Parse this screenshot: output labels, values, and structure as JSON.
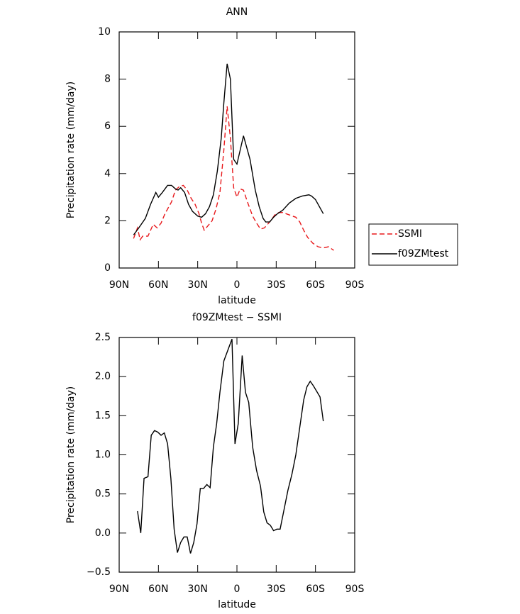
{
  "chart_data": [
    {
      "type": "line",
      "title": "ANN",
      "xlabel": "latitude",
      "ylabel": "Precipitation rate (mm/day)",
      "xlim": [
        90,
        -90
      ],
      "xticks": [
        {
          "value": 90,
          "label": "90N"
        },
        {
          "value": 60,
          "label": "60N"
        },
        {
          "value": 30,
          "label": "30N"
        },
        0,
        {
          "value": -30,
          "label": "30S"
        },
        {
          "value": -60,
          "label": "60S"
        },
        {
          "value": -90,
          "label": "90S"
        }
      ],
      "ylim": [
        0,
        10
      ],
      "yticks": [
        0,
        2,
        4,
        6,
        8,
        10
      ],
      "legend": "outside-right",
      "series": [
        {
          "name": "SSMI",
          "color": "#e8191c",
          "linestyle": "dashed",
          "x": [
            79,
            76,
            74,
            72,
            68,
            64,
            61,
            58,
            55,
            50,
            47,
            44,
            41,
            38,
            35,
            32,
            29,
            27,
            25,
            22,
            19,
            16,
            13,
            10,
            7.5,
            5,
            2.5,
            0,
            -2.5,
            -5,
            -8,
            -12,
            -15,
            -18,
            -21,
            -25,
            -29,
            -32,
            -35,
            -40,
            -45,
            -48,
            -51,
            -54,
            -58,
            -62,
            -66,
            -70,
            -74
          ],
          "values": [
            1.25,
            1.7,
            1.2,
            1.35,
            1.35,
            1.85,
            1.7,
            1.9,
            2.3,
            2.8,
            3.3,
            3.45,
            3.5,
            3.3,
            2.95,
            2.7,
            2.3,
            1.9,
            1.6,
            1.8,
            2.0,
            2.5,
            3.2,
            5.0,
            6.85,
            5.5,
            3.4,
            3.0,
            3.35,
            3.3,
            2.8,
            2.2,
            1.9,
            1.65,
            1.7,
            1.95,
            2.25,
            2.35,
            2.35,
            2.25,
            2.15,
            1.95,
            1.6,
            1.3,
            1.05,
            0.9,
            0.85,
            0.9,
            0.75
          ]
        },
        {
          "name": "f09ZMtest",
          "color": "#000000",
          "linestyle": "solid",
          "x": [
            79,
            75,
            70,
            66,
            62,
            60,
            57,
            53,
            50,
            47,
            45,
            43,
            40,
            37,
            34,
            30,
            27,
            24,
            21,
            18,
            15,
            12,
            10,
            7.5,
            5,
            2.5,
            0,
            -5,
            -10,
            -14,
            -17,
            -20,
            -22,
            -25,
            -28,
            -31,
            -35,
            -40,
            -45,
            -50,
            -55,
            -57,
            -60,
            -63,
            -66
          ],
          "values": [
            1.4,
            1.7,
            2.1,
            2.7,
            3.2,
            3.0,
            3.2,
            3.5,
            3.5,
            3.35,
            3.3,
            3.4,
            3.2,
            2.7,
            2.4,
            2.2,
            2.15,
            2.3,
            2.6,
            3.1,
            4.1,
            5.5,
            7.0,
            8.65,
            8.0,
            4.6,
            4.4,
            5.6,
            4.6,
            3.3,
            2.6,
            2.1,
            1.95,
            1.95,
            2.15,
            2.3,
            2.45,
            2.75,
            2.95,
            3.05,
            3.1,
            3.05,
            2.9,
            2.6,
            2.3
          ]
        }
      ]
    },
    {
      "type": "line",
      "title": "f09ZMtest − SSMI",
      "xlabel": "latitude",
      "ylabel": "Precipitation rate (mm/day)",
      "xlim": [
        90,
        -90
      ],
      "xticks": [
        {
          "value": 90,
          "label": "90N"
        },
        {
          "value": 60,
          "label": "60N"
        },
        {
          "value": 30,
          "label": "30N"
        },
        0,
        {
          "value": -30,
          "label": "30S"
        },
        {
          "value": -60,
          "label": "60S"
        },
        {
          "value": -90,
          "label": "90S"
        }
      ],
      "ylim": [
        -0.5,
        2.5
      ],
      "yticks": [
        {
          "value": -0.5,
          "label": "−0.5"
        },
        {
          "value": 0,
          "label": "0.0"
        },
        {
          "value": 0.5,
          "label": "0.5"
        },
        {
          "value": 1,
          "label": "1.0"
        },
        {
          "value": 1.5,
          "label": "1.5"
        },
        {
          "value": 2,
          "label": "2.0"
        },
        {
          "value": 2.5,
          "label": "2.5"
        }
      ],
      "series": [
        {
          "color": "#000000",
          "linestyle": "solid",
          "x": [
            76,
            73.5,
            71,
            68,
            65.5,
            63,
            60.5,
            58,
            55.5,
            53,
            50.5,
            48,
            45.5,
            43,
            40.5,
            38,
            35.5,
            33,
            30.5,
            28,
            25.5,
            23,
            20.5,
            18,
            15.5,
            13,
            10,
            3.8,
            1.5,
            -1,
            -4,
            -6.5,
            -9,
            -12,
            -15,
            -18,
            -20.5,
            -23,
            -25.5,
            -28,
            -30.5,
            -33,
            -36,
            -39,
            -42,
            -45,
            -48,
            -51,
            -53.5,
            -56,
            -58.5,
            -61,
            -63.5,
            -66
          ],
          "values": [
            0.28,
            0.0,
            0.7,
            0.72,
            1.25,
            1.31,
            1.29,
            1.25,
            1.28,
            1.14,
            0.7,
            0.05,
            -0.25,
            -0.12,
            -0.05,
            -0.05,
            -0.26,
            -0.12,
            0.12,
            0.57,
            0.57,
            0.62,
            0.58,
            1.1,
            1.4,
            1.8,
            2.2,
            2.48,
            1.14,
            1.4,
            2.27,
            1.8,
            1.67,
            1.1,
            0.8,
            0.6,
            0.27,
            0.13,
            0.1,
            0.03,
            0.05,
            0.05,
            0.3,
            0.55,
            0.75,
            1.0,
            1.35,
            1.7,
            1.87,
            1.94,
            1.88,
            1.81,
            1.74,
            1.43
          ]
        }
      ]
    }
  ]
}
